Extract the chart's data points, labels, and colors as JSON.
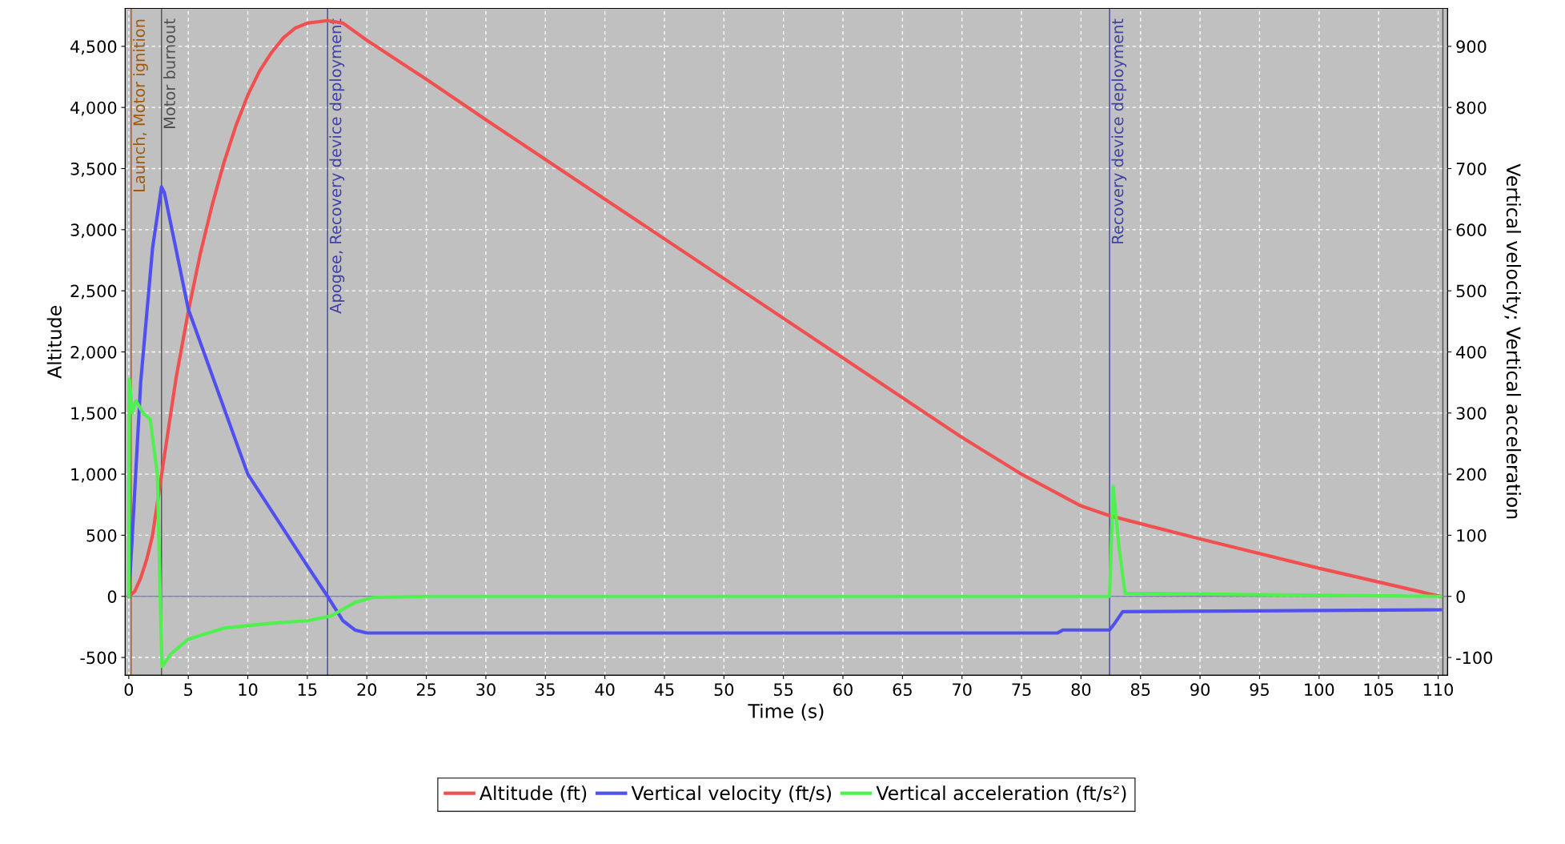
{
  "chart_data": {
    "type": "line",
    "xlabel": "Time (s)",
    "ylabel": "Altitude",
    "y2label": "Vertical velocity; Vertical acceleration",
    "xlim": [
      -0.3,
      110.8
    ],
    "xticks": [
      0,
      5,
      10,
      15,
      20,
      25,
      30,
      35,
      40,
      45,
      50,
      55,
      60,
      65,
      70,
      75,
      80,
      85,
      90,
      95,
      100,
      105,
      110
    ],
    "ylim": [
      -645,
      4810
    ],
    "yticks": [
      {
        "value": -500,
        "label": "-500"
      },
      0,
      500,
      {
        "value": 1000,
        "label": "1,000"
      },
      {
        "value": 1500,
        "label": "1,500"
      },
      {
        "value": 2000,
        "label": "2,000"
      },
      {
        "value": 2500,
        "label": "2,500"
      },
      {
        "value": 3000,
        "label": "3,000"
      },
      {
        "value": 3500,
        "label": "3,500"
      },
      {
        "value": 4000,
        "label": "4,000"
      },
      {
        "value": 4500,
        "label": "4,500"
      }
    ],
    "y2lim": [
      -129,
      962
    ],
    "y2ticks": [
      {
        "value": -100,
        "label": "-100"
      },
      0,
      100,
      200,
      300,
      400,
      500,
      600,
      700,
      800,
      900
    ],
    "grid": true,
    "legend": "bottom",
    "line_style": "solid",
    "marker": "none",
    "series": [
      {
        "name": "Altitude (ft)",
        "color": "#f05050",
        "x": [
          0,
          0.5,
          1,
          1.5,
          2,
          2.75,
          3.5,
          4,
          5,
          6,
          7,
          8,
          9,
          10,
          11,
          12,
          13,
          14,
          15,
          16.7,
          18,
          20,
          25,
          30,
          40,
          50,
          60,
          70,
          75,
          80,
          82.4,
          84,
          90,
          100,
          110.2
        ],
        "values": [
          0,
          40,
          150,
          300,
          500,
          990,
          1480,
          1800,
          2330,
          2800,
          3200,
          3550,
          3850,
          4100,
          4300,
          4450,
          4570,
          4650,
          4690,
          4710,
          4690,
          4550,
          4230,
          3900,
          3250,
          2600,
          1950,
          1300,
          1000,
          740,
          660,
          620,
          470,
          230,
          0
        ]
      },
      {
        "name": "Vertical velocity (ft/s)",
        "color": "#5050f0",
        "axis": "y2",
        "x": [
          0,
          0.3,
          1,
          2,
          2.75,
          3,
          5,
          10,
          15,
          16.7,
          18,
          19,
          20,
          78,
          78.5,
          82.4,
          82.8,
          83.5,
          110.2
        ],
        "values": [
          0,
          100,
          350,
          570,
          670,
          660,
          470,
          200,
          50,
          0,
          -40,
          -55,
          -60,
          -60,
          -55,
          -55,
          -45,
          -25,
          -22
        ]
      },
      {
        "name": "Vertical acceleration (ft/s²)",
        "color": "#50f050",
        "axis": "y2",
        "x": [
          0,
          0.05,
          0.3,
          0.6,
          1.2,
          1.8,
          2.4,
          2.7,
          2.8,
          3.5,
          5,
          8,
          12,
          15,
          17,
          19,
          20.5,
          25,
          82.4,
          82.7,
          83.2,
          83.7,
          110.2
        ],
        "values": [
          0,
          355,
          300,
          320,
          300,
          290,
          200,
          -50,
          -115,
          -95,
          -70,
          -52,
          -44,
          -40,
          -32,
          -10,
          -2,
          0,
          0,
          180,
          80,
          5,
          0
        ]
      }
    ],
    "ref_lines": [
      {
        "axis": "x",
        "value": 0.2,
        "label": "Launch, Motor ignition",
        "color": "#a05a10"
      },
      {
        "axis": "x",
        "value": 2.75,
        "label": "Motor burnout",
        "color": "#505050"
      },
      {
        "axis": "x",
        "value": 16.7,
        "label": "Apogee, Recovery device deployment",
        "color": "#4040a0"
      },
      {
        "axis": "x",
        "value": 82.4,
        "label": "Recovery device deployment",
        "color": "#4040a0"
      },
      {
        "axis": "x",
        "value": 110.4,
        "color": "#505050"
      },
      {
        "axis": "y",
        "value": 0,
        "color": "#8080a0"
      }
    ]
  }
}
